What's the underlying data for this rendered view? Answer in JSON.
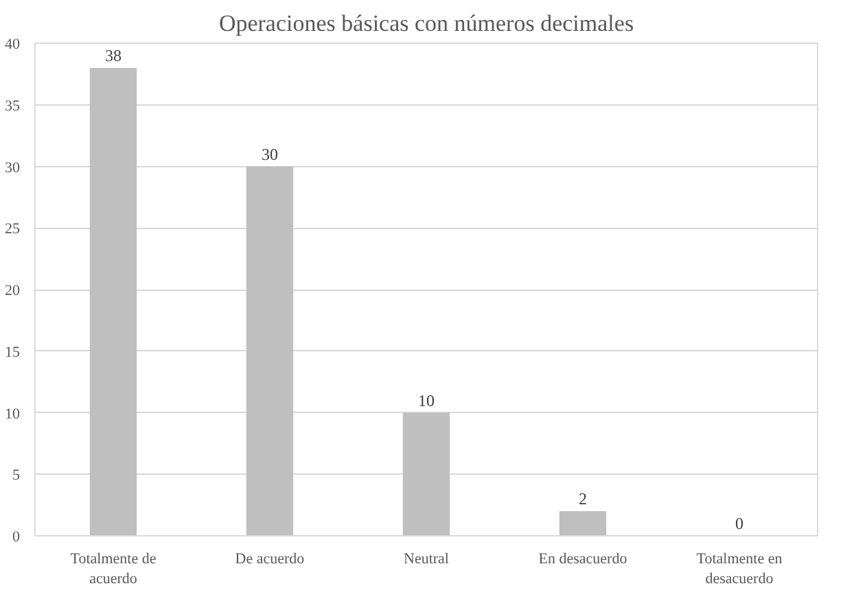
{
  "chart_data": {
    "type": "bar",
    "title": "Operaciones básicas con números decimales",
    "categories": [
      "Totalmente de acuerdo",
      "De acuerdo",
      "Neutral",
      "En desacuerdo",
      "Totalmente en desacuerdo"
    ],
    "values": [
      38,
      30,
      10,
      2,
      0
    ],
    "color": "#bfbfbf",
    "ylim": [
      0,
      40
    ],
    "yticks": [
      0,
      5,
      10,
      15,
      20,
      25,
      30,
      35,
      40
    ],
    "grid": "y",
    "data_labels": true
  }
}
